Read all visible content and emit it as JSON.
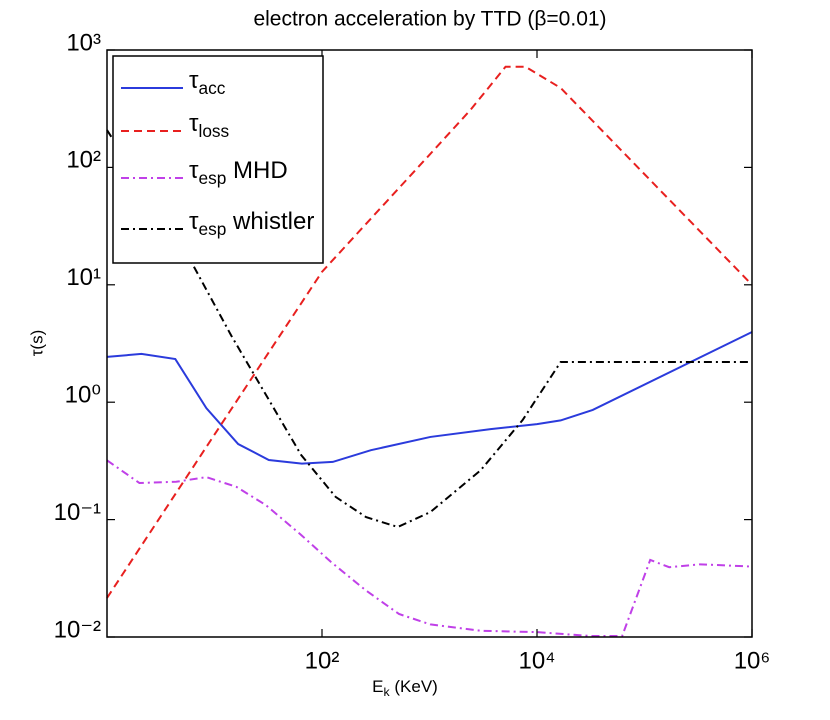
{
  "chart_data": {
    "type": "line",
    "title": "electron acceleration by TTD (β=0.01)",
    "xlabel": "Ek (KeV)",
    "ylabel": "τ(s)",
    "xscale": "log",
    "yscale": "log",
    "xlim": [
      1,
      1000000
    ],
    "ylim": [
      0.01,
      1000
    ],
    "xticks": [
      {
        "value": 100,
        "label": "10²"
      },
      {
        "value": 10000,
        "label": "10⁴"
      },
      {
        "value": 1000000,
        "label": "10⁶"
      }
    ],
    "yticks": [
      {
        "value": 0.01,
        "label": "10⁻²"
      },
      {
        "value": 0.1,
        "label": "10⁻¹"
      },
      {
        "value": 1,
        "label": "10⁰"
      },
      {
        "value": 10,
        "label": "10¹"
      },
      {
        "value": 100,
        "label": "10²"
      },
      {
        "value": 1000,
        "label": "10³"
      }
    ],
    "grid": false,
    "legend": "upper left",
    "series": [
      {
        "name": "τacc",
        "color": "#2b3bdc",
        "style": "solid",
        "x": [
          1,
          2.09,
          4.32,
          8.4,
          16.6,
          32,
          65,
          126,
          285,
          1020,
          3700,
          10000,
          16600,
          33000,
          1000000
        ],
        "values": [
          2.43,
          2.58,
          2.33,
          0.89,
          0.44,
          0.322,
          0.3,
          0.31,
          0.39,
          0.506,
          0.59,
          0.65,
          0.7,
          0.86,
          3.96
        ]
      },
      {
        "name": "τloss",
        "color": "#e8201f",
        "style": "dashed",
        "x": [
          1,
          10,
          100,
          1000,
          2400,
          5100,
          7800,
          16600,
          1000000
        ],
        "values": [
          0.0215,
          0.53,
          12.9,
          128,
          308,
          720,
          720,
          475,
          10
        ]
      },
      {
        "name": "τesp MHD",
        "color": "#c040e8",
        "style": "dashdot",
        "x": [
          1,
          2,
          4.4,
          8.4,
          16,
          30,
          64,
          121,
          255,
          520,
          1020,
          3000,
          10000,
          31500,
          62000,
          113000,
          170000,
          330000,
          1000000
        ],
        "values": [
          0.32,
          0.205,
          0.21,
          0.23,
          0.19,
          0.133,
          0.074,
          0.0436,
          0.025,
          0.0157,
          0.0128,
          0.0113,
          0.011,
          0.0102,
          0.0102,
          0.0453,
          0.0393,
          0.0416,
          0.0398
        ]
      },
      {
        "name": "τesp whistler",
        "color": "#000000",
        "style": "dashdot",
        "x": [
          1,
          6.1,
          14.3,
          64,
          134,
          257,
          507,
          1020,
          3000,
          7350,
          16600,
          1000000
        ],
        "values": [
          208,
          15.6,
          3.7,
          0.355,
          0.156,
          0.105,
          0.0865,
          0.116,
          0.264,
          0.705,
          2.2,
          2.2
        ]
      }
    ]
  }
}
